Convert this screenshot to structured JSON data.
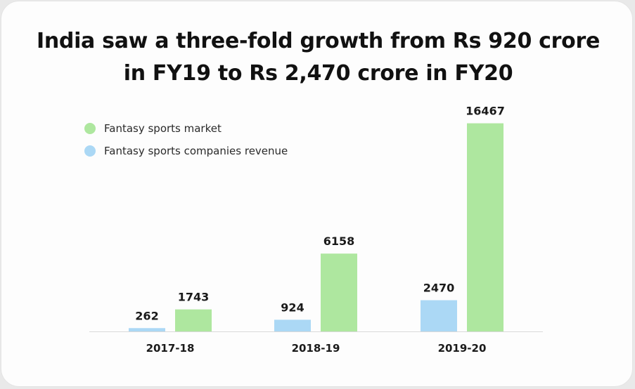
{
  "chart_data": {
    "type": "bar",
    "title": "India saw a three-fold growth from Rs 920 crore in FY19 to Rs 2,470 crore in FY20",
    "title_lines": [
      "India saw a three-fold growth from Rs 920 crore",
      "in FY19 to Rs 2,470 crore in FY20"
    ],
    "categories": [
      "2017-18",
      "2018-19",
      "2019-20"
    ],
    "series": [
      {
        "name": "Fantasy sports companies revenue",
        "values": [
          262,
          924,
          2470
        ],
        "color": "#abd8f5"
      },
      {
        "name": "Fantasy sports market",
        "values": [
          1743,
          6158,
          16467
        ],
        "color": "#aee79f"
      }
    ],
    "legend_order": [
      1,
      0
    ],
    "legend_position": "top-left",
    "ylim": [
      0,
      18000
    ],
    "grid": false,
    "xlabel": "",
    "ylabel": ""
  },
  "colors": {
    "background": "#fdfdfd",
    "axis": "#d9d9d9",
    "text": "#1a1a1a"
  }
}
